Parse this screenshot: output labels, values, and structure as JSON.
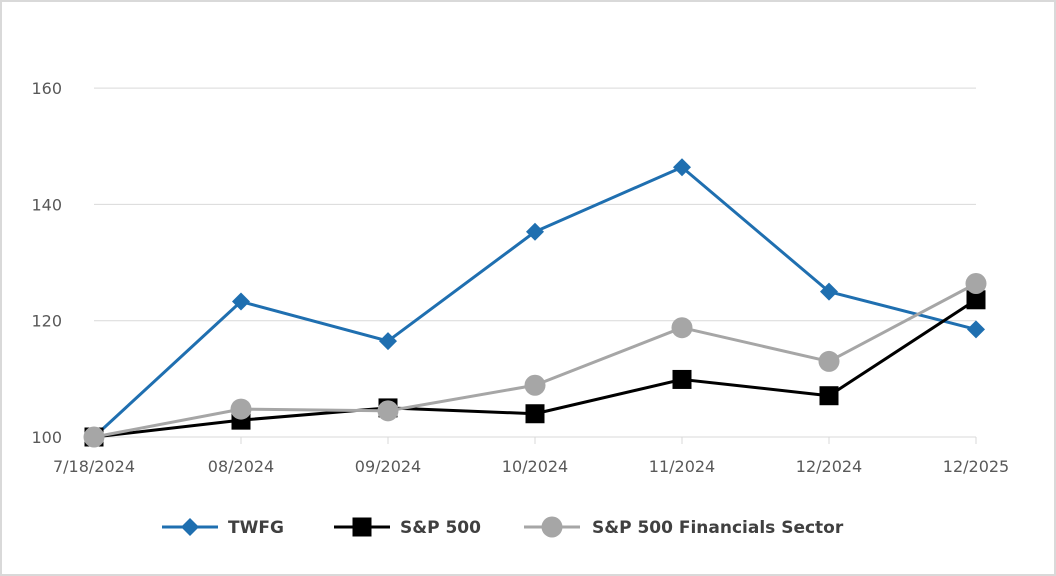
{
  "chart_data": {
    "type": "line",
    "title": "",
    "xlabel": "",
    "ylabel": "",
    "categories": [
      "7/18/2024",
      "08/2024",
      "09/2024",
      "10/2024",
      "11/2024",
      "12/2024",
      "12/2025"
    ],
    "ylim": [
      100,
      170
    ],
    "yticks": [
      100,
      120,
      140,
      160
    ],
    "grid": true,
    "legend_position": "bottom",
    "series": [
      {
        "name": "TWFG",
        "color": "#1f6fb0",
        "marker": "diamond",
        "values": [
          100,
          123.3,
          116.5,
          135.3,
          146.4,
          125.0,
          118.5
        ]
      },
      {
        "name": "S&P 500",
        "color": "#000000",
        "marker": "square",
        "values": [
          100,
          102.9,
          105.0,
          104.0,
          109.9,
          107.1,
          123.6
        ]
      },
      {
        "name": "S&P 500 Financials Sector",
        "color": "#a6a6a6",
        "marker": "circle",
        "values": [
          100,
          104.8,
          104.5,
          108.9,
          118.8,
          113.0,
          126.4
        ]
      }
    ]
  }
}
